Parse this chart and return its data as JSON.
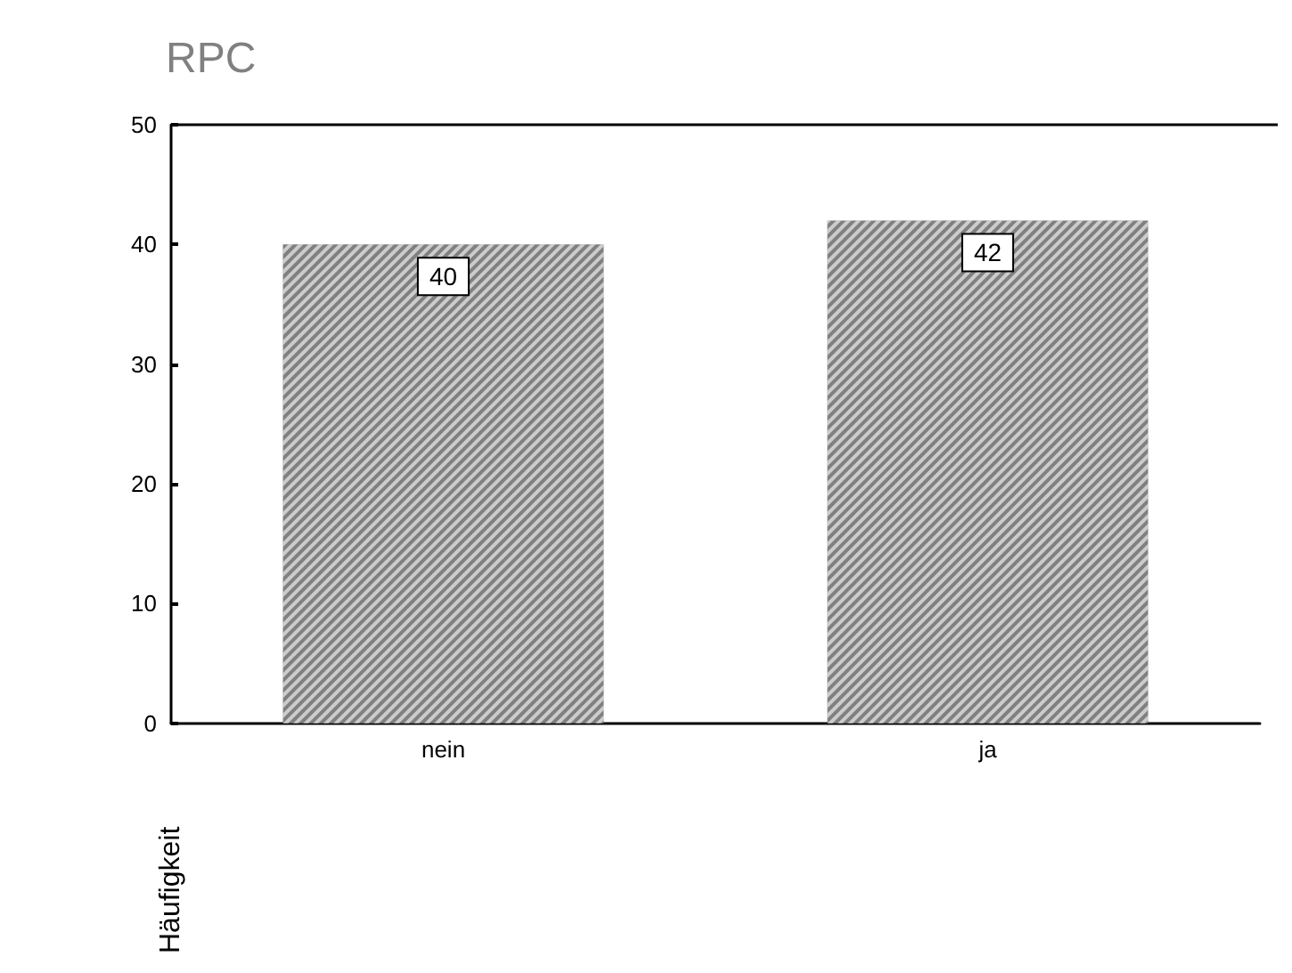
{
  "chart_data": {
    "type": "bar",
    "title": "RPC",
    "ylabel": "Häufigkeit",
    "categories": [
      "nein",
      "ja"
    ],
    "values": [
      40,
      42
    ],
    "color": "#808080",
    "ylim": [
      0,
      50
    ],
    "yticks": [
      0,
      10,
      20,
      30,
      40,
      50
    ],
    "grid": false,
    "data_labels": true
  }
}
